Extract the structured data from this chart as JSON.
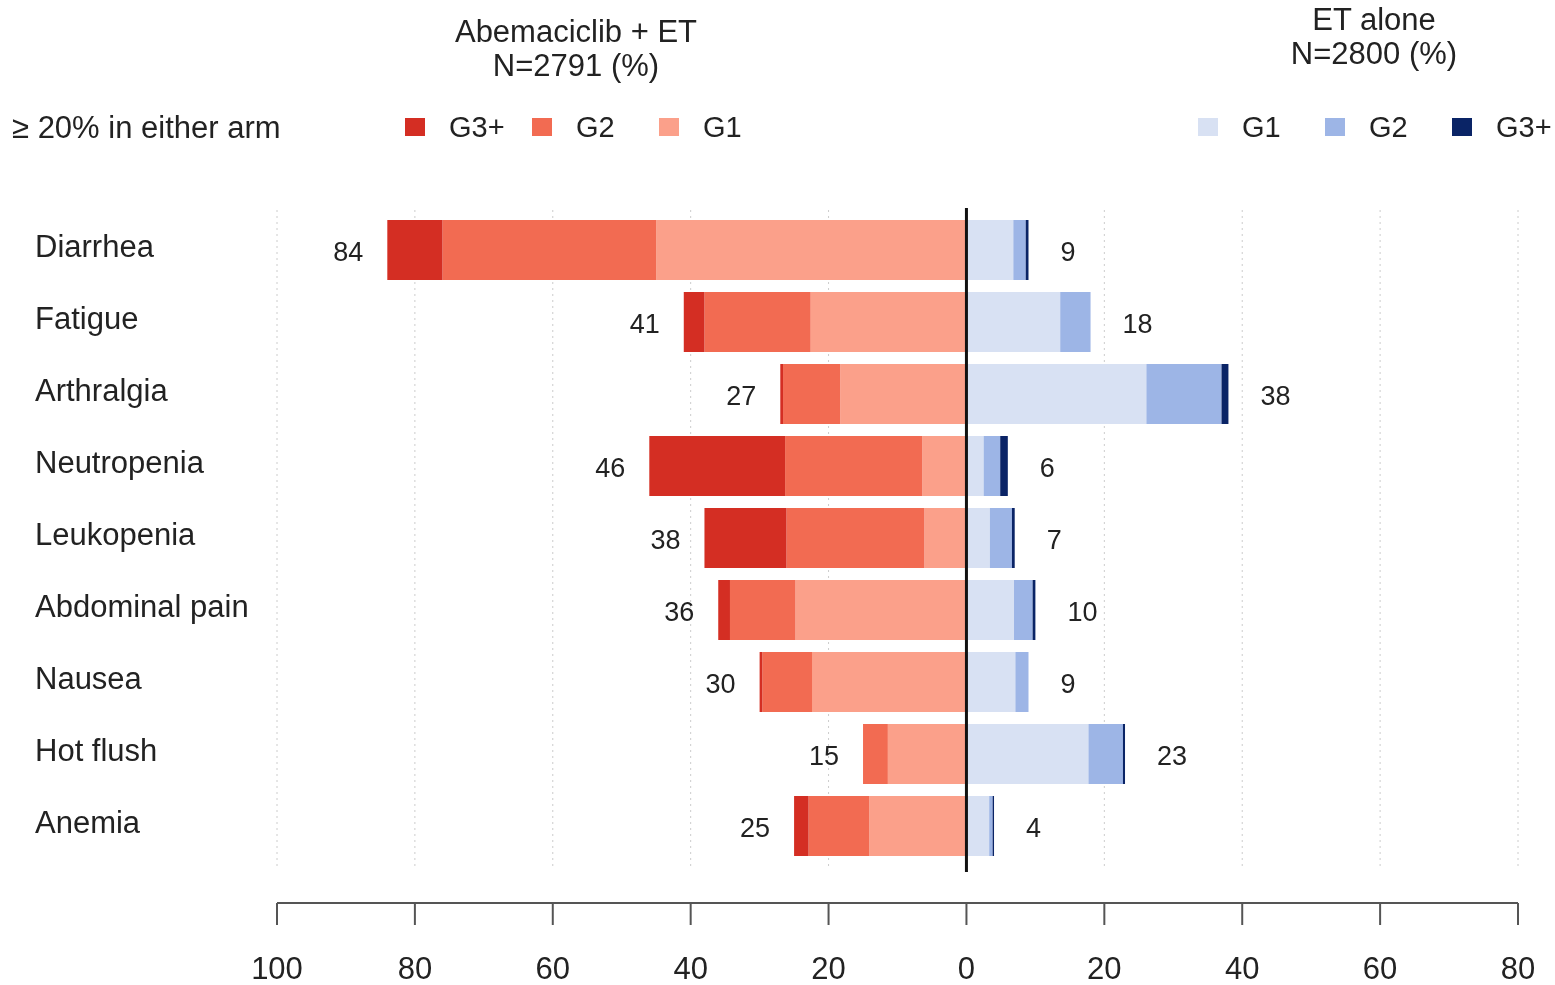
{
  "chart_data": {
    "type": "bar",
    "orientation": "horizontal",
    "stacked": true,
    "subtitle": "≥ 20% in either arm",
    "categories": [
      "Diarrhea",
      "Fatigue",
      "Arthralgia",
      "Neutropenia",
      "Leukopenia",
      "Abdominal pain",
      "Nausea",
      "Hot flush",
      "Anemia"
    ],
    "series": [
      {
        "name": "G1",
        "color": "#fba08a",
        "values": [
          -45,
          -22.6,
          -18.3,
          -6.4,
          -6.1,
          -24.8,
          -22.4,
          -11.4,
          -14.1
        ]
      },
      {
        "name": "G2",
        "color": "#f26b52",
        "values": [
          -31,
          -15.4,
          -8.3,
          -19.9,
          -20,
          -9.5,
          -7.2,
          -3.6,
          -8.8
        ]
      },
      {
        "name": "G3+",
        "color": "#d42e23",
        "values": [
          -8,
          -3,
          -0.4,
          -19.7,
          -11.9,
          -1.7,
          -0.4,
          0,
          -2.1
        ]
      },
      {
        "name": "G1",
        "color": "#d8e1f3",
        "values": [
          6.8,
          13.6,
          26.1,
          2.5,
          3.4,
          6.9,
          7.1,
          17.7,
          3.3
        ]
      },
      {
        "name": "G2",
        "color": "#9db5e6",
        "values": [
          1.8,
          4.4,
          10.9,
          2.4,
          3.2,
          2.7,
          1.9,
          5,
          0.5
        ]
      },
      {
        "name": "G3+",
        "color": "#0a2466",
        "values": [
          0.4,
          0,
          1,
          1.1,
          0.4,
          0.4,
          0,
          0.3,
          0.2
        ]
      }
    ],
    "xlim": [
      -100,
      80
    ],
    "xticks": [
      {
        "value": -100,
        "label": "100"
      },
      {
        "value": -80,
        "label": "80"
      },
      {
        "value": -60,
        "label": "60"
      },
      {
        "value": -40,
        "label": "40"
      },
      {
        "value": -20,
        "label": "20"
      },
      0,
      20,
      40,
      60,
      80
    ],
    "grid": "x",
    "legend": "top",
    "ref_lines": [
      {
        "axis": "x",
        "value": 0,
        "color": "#111111"
      }
    ],
    "annotations": [
      "Abemaciclib + ET\nN=2791 (%)",
      "ET alone\nN=2800 (%)",
      {
        "text": "84",
        "x": -84,
        "y": "Diarrhea"
      },
      {
        "text": "9",
        "x": 9,
        "y": "Diarrhea"
      },
      {
        "text": "41",
        "x": -41,
        "y": "Fatigue"
      },
      {
        "text": "18",
        "x": 18,
        "y": "Fatigue"
      },
      {
        "text": "27",
        "x": -27,
        "y": "Arthralgia"
      },
      {
        "text": "38",
        "x": 38,
        "y": "Arthralgia"
      },
      {
        "text": "46",
        "x": -46,
        "y": "Neutropenia"
      },
      {
        "text": "6",
        "x": 6,
        "y": "Neutropenia"
      },
      {
        "text": "38",
        "x": -38,
        "y": "Leukopenia"
      },
      {
        "text": "7",
        "x": 7,
        "y": "Leukopenia"
      },
      {
        "text": "36",
        "x": -36,
        "y": "Abdominal pain"
      },
      {
        "text": "10",
        "x": 10,
        "y": "Abdominal pain"
      },
      {
        "text": "30",
        "x": -30,
        "y": "Nausea"
      },
      {
        "text": "9",
        "x": 9,
        "y": "Nausea"
      },
      {
        "text": "15",
        "x": -15,
        "y": "Hot flush"
      },
      {
        "text": "23",
        "x": 23,
        "y": "Hot flush"
      },
      {
        "text": "25",
        "x": -25,
        "y": "Anemia"
      },
      {
        "text": "4",
        "x": 4,
        "y": "Anemia"
      }
    ]
  }
}
